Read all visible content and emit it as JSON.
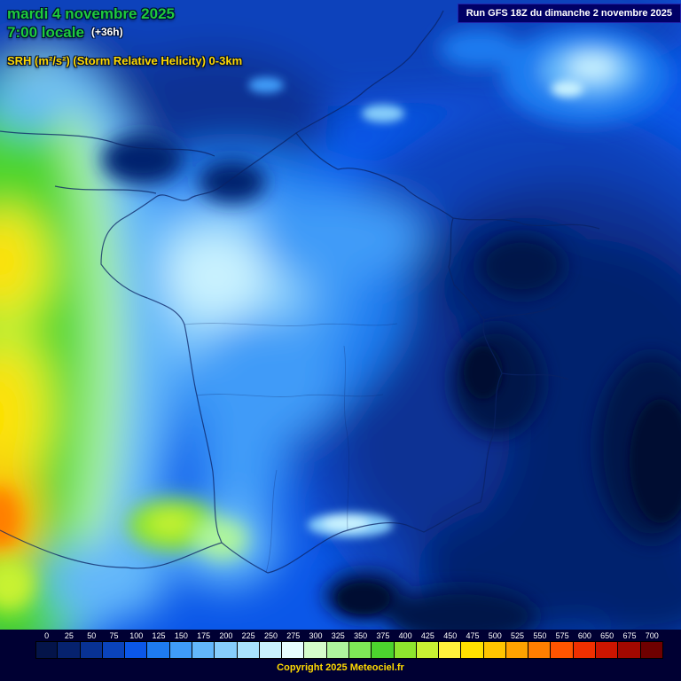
{
  "header": {
    "date": "mardi 4 novembre 2025",
    "time": "7:00 locale",
    "offset": "(+36h)",
    "run_info": "Run GFS 18Z du dimanche 2 novembre 2025",
    "subtitle": "SRH (m²/s²) (Storm Relative Helicity) 0-3km"
  },
  "legend": {
    "values": [
      "0",
      "25",
      "50",
      "75",
      "100",
      "125",
      "150",
      "175",
      "200",
      "225",
      "250",
      "275",
      "300",
      "325",
      "350",
      "375",
      "400",
      "425",
      "450",
      "475",
      "500",
      "525",
      "550",
      "575",
      "600",
      "650",
      "675",
      "700"
    ],
    "colors": [
      "#041449",
      "#06226e",
      "#083294",
      "#0a43bb",
      "#0b57e8",
      "#1e7bf0",
      "#3f9bf8",
      "#63b7fa",
      "#86cdfb",
      "#a9e2fd",
      "#c9f2fe",
      "#e6fcff",
      "#d4fbca",
      "#aef59d",
      "#7ee857",
      "#4cd42e",
      "#8ee62e",
      "#c8f233",
      "#fff23c",
      "#ffe000",
      "#ffc400",
      "#ffa200",
      "#ff7e00",
      "#ff5500",
      "#f03000",
      "#cc1500",
      "#a00800",
      "#6e0000"
    ]
  },
  "footer": {
    "copyright": "Copyright 2025 Meteociel.fr"
  },
  "map": {
    "region": "France",
    "accent_green": "#1ecb3c",
    "accent_yellow": "#ffd900",
    "panel_navy": "#000033",
    "run_box_navy": "#000066"
  }
}
